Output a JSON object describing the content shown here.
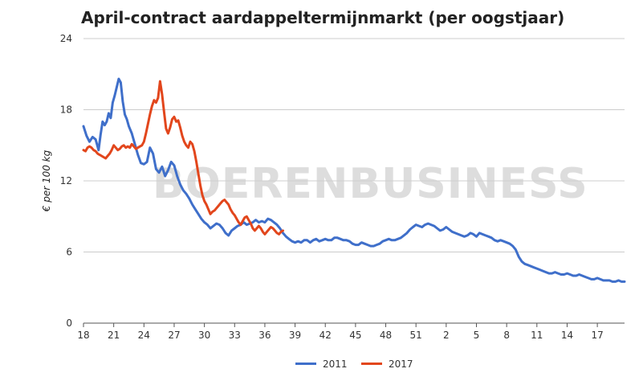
{
  "chart_data": {
    "type": "line",
    "title": "April-contract aardappeltermijnmarkt (per oogstjaar)",
    "ylabel": "€ per 100 kg",
    "xlabel": "",
    "ylim": [
      0,
      24
    ],
    "yticks": [
      0,
      6,
      12,
      18,
      24
    ],
    "x_tick_labels": [
      "18",
      "21",
      "24",
      "27",
      "30",
      "33",
      "36",
      "39",
      "42",
      "45",
      "48",
      "51",
      "2",
      "5",
      "8",
      "11",
      "14",
      "17"
    ],
    "x_tick_positions": [
      0,
      3,
      6,
      9,
      12,
      15,
      18,
      21,
      24,
      27,
      30,
      33,
      36,
      39,
      42,
      45,
      48,
      51
    ],
    "x_max": 53.7,
    "grid": true,
    "legend_position": "bottom",
    "watermark": "BOERENBUSINESS",
    "series": [
      {
        "name": "2011",
        "color": "#3f6fca",
        "points": [
          [
            0.0,
            16.6
          ],
          [
            0.3,
            15.8
          ],
          [
            0.6,
            15.3
          ],
          [
            0.9,
            15.7
          ],
          [
            1.2,
            15.5
          ],
          [
            1.5,
            14.6
          ],
          [
            1.7,
            15.9
          ],
          [
            1.9,
            17.0
          ],
          [
            2.1,
            16.7
          ],
          [
            2.3,
            17.0
          ],
          [
            2.5,
            17.7
          ],
          [
            2.7,
            17.3
          ],
          [
            2.9,
            18.6
          ],
          [
            3.1,
            19.2
          ],
          [
            3.3,
            19.9
          ],
          [
            3.5,
            20.6
          ],
          [
            3.7,
            20.3
          ],
          [
            3.9,
            18.7
          ],
          [
            4.1,
            17.6
          ],
          [
            4.3,
            17.2
          ],
          [
            4.5,
            16.6
          ],
          [
            4.8,
            16.0
          ],
          [
            5.1,
            15.1
          ],
          [
            5.4,
            14.2
          ],
          [
            5.7,
            13.5
          ],
          [
            6.0,
            13.4
          ],
          [
            6.3,
            13.6
          ],
          [
            6.6,
            14.8
          ],
          [
            6.9,
            14.3
          ],
          [
            7.2,
            13.0
          ],
          [
            7.5,
            12.7
          ],
          [
            7.8,
            13.2
          ],
          [
            8.1,
            12.4
          ],
          [
            8.4,
            12.9
          ],
          [
            8.7,
            13.6
          ],
          [
            9.0,
            13.3
          ],
          [
            9.3,
            12.4
          ],
          [
            9.6,
            11.7
          ],
          [
            9.9,
            11.2
          ],
          [
            10.2,
            10.9
          ],
          [
            10.5,
            10.5
          ],
          [
            10.8,
            10.0
          ],
          [
            11.1,
            9.6
          ],
          [
            11.4,
            9.2
          ],
          [
            11.7,
            8.8
          ],
          [
            12.0,
            8.5
          ],
          [
            12.3,
            8.3
          ],
          [
            12.6,
            8.0
          ],
          [
            12.9,
            8.2
          ],
          [
            13.2,
            8.4
          ],
          [
            13.5,
            8.3
          ],
          [
            13.8,
            8.0
          ],
          [
            14.1,
            7.6
          ],
          [
            14.4,
            7.4
          ],
          [
            14.7,
            7.8
          ],
          [
            15.0,
            8.0
          ],
          [
            15.3,
            8.2
          ],
          [
            15.6,
            8.3
          ],
          [
            15.9,
            8.5
          ],
          [
            16.2,
            8.3
          ],
          [
            16.5,
            8.4
          ],
          [
            16.8,
            8.5
          ],
          [
            17.1,
            8.7
          ],
          [
            17.4,
            8.5
          ],
          [
            17.7,
            8.6
          ],
          [
            18.0,
            8.5
          ],
          [
            18.3,
            8.8
          ],
          [
            18.6,
            8.7
          ],
          [
            18.9,
            8.5
          ],
          [
            19.2,
            8.3
          ],
          [
            19.5,
            8.0
          ],
          [
            19.8,
            7.6
          ],
          [
            20.1,
            7.3
          ],
          [
            20.4,
            7.1
          ],
          [
            20.7,
            6.9
          ],
          [
            21.0,
            6.8
          ],
          [
            21.3,
            6.9
          ],
          [
            21.6,
            6.8
          ],
          [
            21.9,
            7.0
          ],
          [
            22.2,
            7.0
          ],
          [
            22.5,
            6.8
          ],
          [
            22.8,
            7.0
          ],
          [
            23.1,
            7.1
          ],
          [
            23.4,
            6.9
          ],
          [
            23.7,
            7.0
          ],
          [
            24.0,
            7.1
          ],
          [
            24.3,
            7.0
          ],
          [
            24.6,
            7.0
          ],
          [
            24.9,
            7.2
          ],
          [
            25.2,
            7.2
          ],
          [
            25.5,
            7.1
          ],
          [
            25.8,
            7.0
          ],
          [
            26.1,
            7.0
          ],
          [
            26.4,
            6.9
          ],
          [
            26.7,
            6.7
          ],
          [
            27.0,
            6.6
          ],
          [
            27.3,
            6.6
          ],
          [
            27.6,
            6.8
          ],
          [
            27.9,
            6.7
          ],
          [
            28.2,
            6.6
          ],
          [
            28.5,
            6.5
          ],
          [
            28.8,
            6.5
          ],
          [
            29.1,
            6.6
          ],
          [
            29.4,
            6.7
          ],
          [
            29.7,
            6.9
          ],
          [
            30.0,
            7.0
          ],
          [
            30.3,
            7.1
          ],
          [
            30.6,
            7.0
          ],
          [
            30.9,
            7.0
          ],
          [
            31.2,
            7.1
          ],
          [
            31.5,
            7.2
          ],
          [
            31.8,
            7.4
          ],
          [
            32.1,
            7.6
          ],
          [
            32.4,
            7.9
          ],
          [
            32.7,
            8.1
          ],
          [
            33.0,
            8.3
          ],
          [
            33.3,
            8.2
          ],
          [
            33.6,
            8.1
          ],
          [
            33.9,
            8.3
          ],
          [
            34.2,
            8.4
          ],
          [
            34.5,
            8.3
          ],
          [
            34.8,
            8.2
          ],
          [
            35.1,
            8.0
          ],
          [
            35.4,
            7.8
          ],
          [
            35.7,
            7.9
          ],
          [
            36.0,
            8.1
          ],
          [
            36.3,
            7.9
          ],
          [
            36.6,
            7.7
          ],
          [
            36.9,
            7.6
          ],
          [
            37.2,
            7.5
          ],
          [
            37.5,
            7.4
          ],
          [
            37.8,
            7.3
          ],
          [
            38.1,
            7.4
          ],
          [
            38.4,
            7.6
          ],
          [
            38.7,
            7.5
          ],
          [
            39.0,
            7.3
          ],
          [
            39.3,
            7.6
          ],
          [
            39.6,
            7.5
          ],
          [
            39.9,
            7.4
          ],
          [
            40.2,
            7.3
          ],
          [
            40.5,
            7.2
          ],
          [
            40.8,
            7.0
          ],
          [
            41.1,
            6.9
          ],
          [
            41.4,
            7.0
          ],
          [
            41.7,
            6.9
          ],
          [
            42.0,
            6.8
          ],
          [
            42.3,
            6.7
          ],
          [
            42.6,
            6.5
          ],
          [
            42.9,
            6.2
          ],
          [
            43.2,
            5.6
          ],
          [
            43.5,
            5.2
          ],
          [
            43.8,
            5.0
          ],
          [
            44.1,
            4.9
          ],
          [
            44.4,
            4.8
          ],
          [
            44.7,
            4.7
          ],
          [
            45.0,
            4.6
          ],
          [
            45.3,
            4.5
          ],
          [
            45.6,
            4.4
          ],
          [
            45.9,
            4.3
          ],
          [
            46.2,
            4.2
          ],
          [
            46.5,
            4.2
          ],
          [
            46.8,
            4.3
          ],
          [
            47.1,
            4.2
          ],
          [
            47.4,
            4.1
          ],
          [
            47.7,
            4.1
          ],
          [
            48.0,
            4.2
          ],
          [
            48.3,
            4.1
          ],
          [
            48.6,
            4.0
          ],
          [
            48.9,
            4.0
          ],
          [
            49.2,
            4.1
          ],
          [
            49.5,
            4.0
          ],
          [
            49.8,
            3.9
          ],
          [
            50.1,
            3.8
          ],
          [
            50.4,
            3.7
          ],
          [
            50.7,
            3.7
          ],
          [
            51.0,
            3.8
          ],
          [
            51.3,
            3.7
          ],
          [
            51.6,
            3.6
          ],
          [
            51.9,
            3.6
          ],
          [
            52.2,
            3.6
          ],
          [
            52.5,
            3.5
          ],
          [
            52.8,
            3.5
          ],
          [
            53.1,
            3.6
          ],
          [
            53.4,
            3.5
          ],
          [
            53.7,
            3.5
          ]
        ]
      },
      {
        "name": "2017",
        "color": "#e2461c",
        "points": [
          [
            0.0,
            14.6
          ],
          [
            0.2,
            14.5
          ],
          [
            0.4,
            14.8
          ],
          [
            0.6,
            14.9
          ],
          [
            0.8,
            14.8
          ],
          [
            1.0,
            14.6
          ],
          [
            1.2,
            14.5
          ],
          [
            1.4,
            14.3
          ],
          [
            1.6,
            14.2
          ],
          [
            1.8,
            14.1
          ],
          [
            2.0,
            14.0
          ],
          [
            2.2,
            13.9
          ],
          [
            2.4,
            14.1
          ],
          [
            2.6,
            14.3
          ],
          [
            2.8,
            14.6
          ],
          [
            3.0,
            15.0
          ],
          [
            3.2,
            14.8
          ],
          [
            3.4,
            14.6
          ],
          [
            3.6,
            14.7
          ],
          [
            3.8,
            14.9
          ],
          [
            4.0,
            15.0
          ],
          [
            4.2,
            14.8
          ],
          [
            4.4,
            14.9
          ],
          [
            4.6,
            14.8
          ],
          [
            4.8,
            15.1
          ],
          [
            5.0,
            14.9
          ],
          [
            5.2,
            14.7
          ],
          [
            5.4,
            14.8
          ],
          [
            5.6,
            14.9
          ],
          [
            5.8,
            15.0
          ],
          [
            6.0,
            15.3
          ],
          [
            6.2,
            16.0
          ],
          [
            6.4,
            16.8
          ],
          [
            6.6,
            17.6
          ],
          [
            6.8,
            18.3
          ],
          [
            7.0,
            18.8
          ],
          [
            7.2,
            18.6
          ],
          [
            7.4,
            19.0
          ],
          [
            7.6,
            20.4
          ],
          [
            7.8,
            19.3
          ],
          [
            8.0,
            17.8
          ],
          [
            8.2,
            16.4
          ],
          [
            8.4,
            16.0
          ],
          [
            8.6,
            16.5
          ],
          [
            8.8,
            17.2
          ],
          [
            9.0,
            17.4
          ],
          [
            9.2,
            17.0
          ],
          [
            9.4,
            17.1
          ],
          [
            9.6,
            16.5
          ],
          [
            9.8,
            15.8
          ],
          [
            10.0,
            15.3
          ],
          [
            10.2,
            15.0
          ],
          [
            10.4,
            14.8
          ],
          [
            10.6,
            15.3
          ],
          [
            10.8,
            15.1
          ],
          [
            11.0,
            14.5
          ],
          [
            11.2,
            13.6
          ],
          [
            11.4,
            12.6
          ],
          [
            11.6,
            11.6
          ],
          [
            11.8,
            10.8
          ],
          [
            12.0,
            10.3
          ],
          [
            12.2,
            10.0
          ],
          [
            12.4,
            9.6
          ],
          [
            12.6,
            9.2
          ],
          [
            12.8,
            9.4
          ],
          [
            13.0,
            9.5
          ],
          [
            13.2,
            9.7
          ],
          [
            13.4,
            9.9
          ],
          [
            13.6,
            10.1
          ],
          [
            13.8,
            10.3
          ],
          [
            14.0,
            10.4
          ],
          [
            14.2,
            10.2
          ],
          [
            14.4,
            10.0
          ],
          [
            14.6,
            9.6
          ],
          [
            14.8,
            9.3
          ],
          [
            15.0,
            9.1
          ],
          [
            15.2,
            8.8
          ],
          [
            15.4,
            8.5
          ],
          [
            15.6,
            8.3
          ],
          [
            15.8,
            8.6
          ],
          [
            16.0,
            8.9
          ],
          [
            16.2,
            9.0
          ],
          [
            16.4,
            8.7
          ],
          [
            16.6,
            8.4
          ],
          [
            16.8,
            8.0
          ],
          [
            17.0,
            7.8
          ],
          [
            17.2,
            8.0
          ],
          [
            17.4,
            8.2
          ],
          [
            17.6,
            8.0
          ],
          [
            17.8,
            7.7
          ],
          [
            18.0,
            7.5
          ],
          [
            18.2,
            7.7
          ],
          [
            18.4,
            7.9
          ],
          [
            18.6,
            8.1
          ],
          [
            18.8,
            8.0
          ],
          [
            19.0,
            7.8
          ],
          [
            19.2,
            7.6
          ],
          [
            19.4,
            7.5
          ],
          [
            19.6,
            7.7
          ],
          [
            19.8,
            7.8
          ]
        ]
      }
    ]
  }
}
